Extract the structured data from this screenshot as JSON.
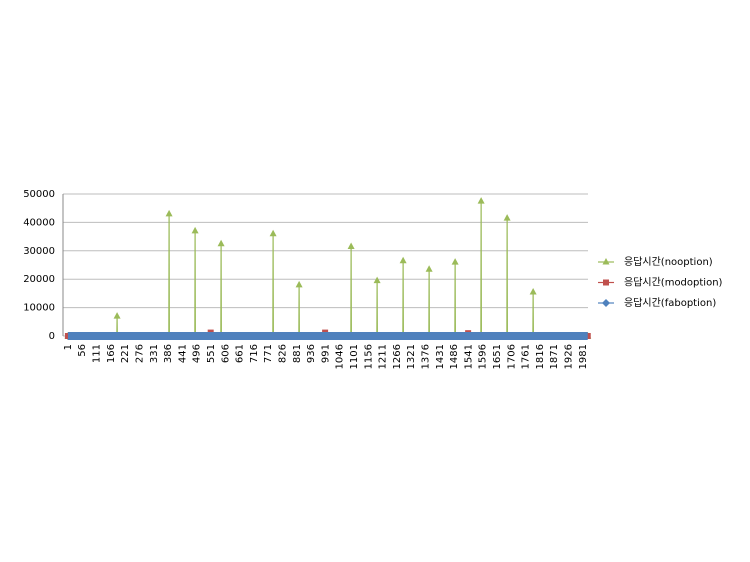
{
  "chart_data": {
    "type": "line",
    "xlim": [
      -18,
      2001
    ],
    "xticks": [
      1,
      56,
      111,
      166,
      221,
      276,
      331,
      386,
      441,
      496,
      551,
      606,
      661,
      716,
      771,
      826,
      881,
      936,
      991,
      1046,
      1101,
      1156,
      1211,
      1266,
      1321,
      1376,
      1431,
      1486,
      1541,
      1596,
      1651,
      1706,
      1761,
      1816,
      1871,
      1926,
      1981
    ],
    "ylim": [
      0,
      50000
    ],
    "yticks": [
      0,
      10000,
      20000,
      30000,
      40000,
      50000
    ],
    "grid": true,
    "legend": "right",
    "series": [
      {
        "name": "응답시간(nooption)",
        "color": "#9bbb59",
        "marker": "triangle",
        "x": [
          1,
          189,
          190,
          191,
          389,
          390,
          391,
          489,
          490,
          491,
          589,
          590,
          591,
          789,
          790,
          791,
          889,
          890,
          891,
          1089,
          1090,
          1091,
          1189,
          1190,
          1191,
          1289,
          1290,
          1291,
          1389,
          1390,
          1391,
          1489,
          1490,
          1491,
          1589,
          1590,
          1591,
          1689,
          1690,
          1691,
          1789,
          1790,
          1791,
          2000
        ],
        "values": [
          0,
          0,
          7000,
          0,
          0,
          43000,
          0,
          0,
          37000,
          0,
          0,
          32500,
          0,
          0,
          36000,
          0,
          0,
          18000,
          0,
          0,
          31500,
          0,
          0,
          19500,
          0,
          0,
          26500,
          0,
          0,
          23500,
          0,
          0,
          26000,
          0,
          0,
          47500,
          0,
          0,
          41500,
          0,
          0,
          15500,
          0,
          0
        ]
      },
      {
        "name": "응답시간(modoption)",
        "color": "#c0504d",
        "marker": "square",
        "x": [
          1,
          110,
          549,
          550,
          551,
          989,
          990,
          991,
          1539,
          1540,
          1541,
          1900,
          2000
        ],
        "values": [
          0,
          0,
          0,
          1200,
          0,
          0,
          1200,
          0,
          0,
          1000,
          0,
          0,
          0
        ]
      },
      {
        "name": "응답시간(faboption)",
        "color": "#4f81bd",
        "marker": "diamond",
        "x": [
          1,
          2000
        ],
        "values": [
          0,
          0
        ]
      }
    ]
  }
}
